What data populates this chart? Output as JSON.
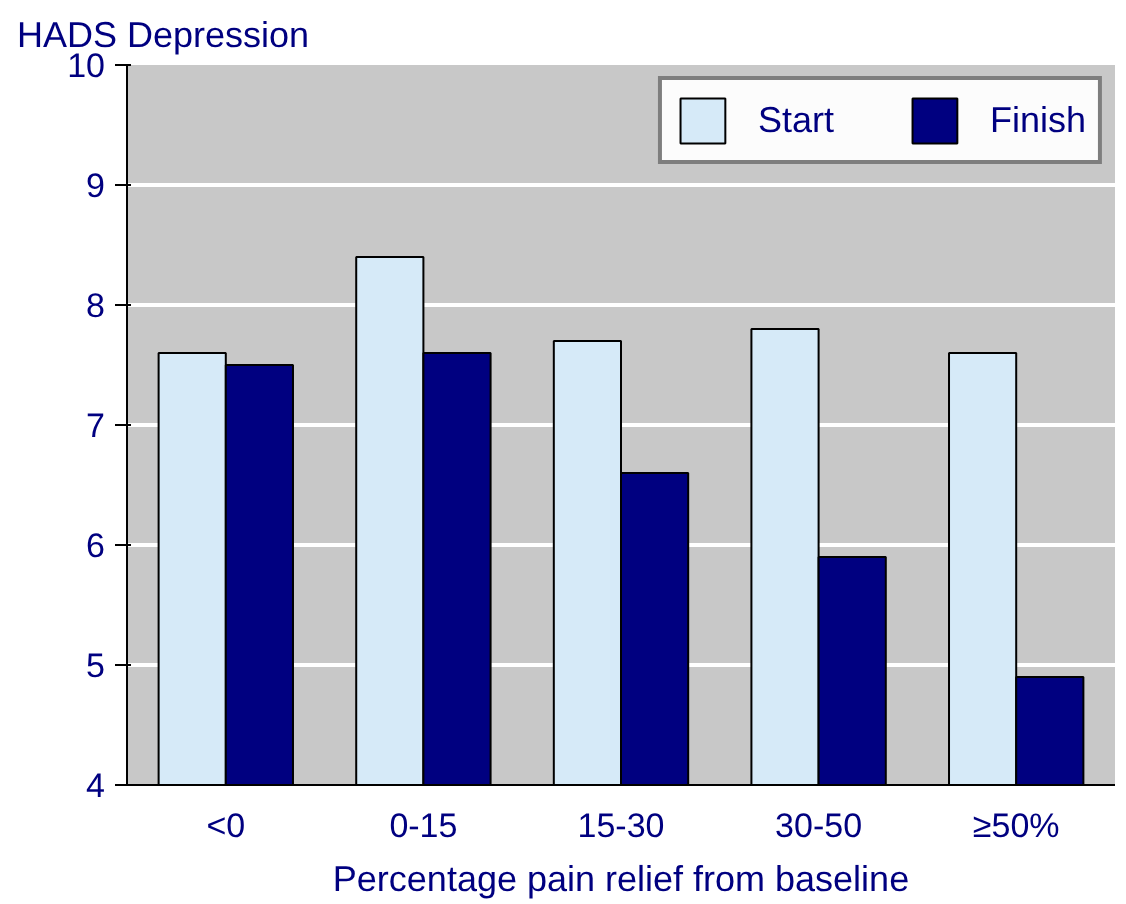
{
  "chart_data": {
    "type": "bar",
    "ylabel": "HADS Depression",
    "xlabel": "Percentage pain relief from baseline",
    "categories": [
      "<0",
      "0-15",
      "15-30",
      "30-50",
      "≥50%"
    ],
    "series": [
      {
        "name": "Start",
        "color": "#d6eaf8",
        "values": [
          7.6,
          8.4,
          7.7,
          7.8,
          7.6
        ]
      },
      {
        "name": "Finish",
        "color": "#000080",
        "values": [
          7.5,
          7.6,
          6.6,
          5.9,
          4.9
        ]
      }
    ],
    "ylim": [
      4,
      10
    ],
    "yticks": [
      4,
      5,
      6,
      7,
      8,
      9,
      10
    ],
    "grid": "y",
    "legend": "top right"
  }
}
